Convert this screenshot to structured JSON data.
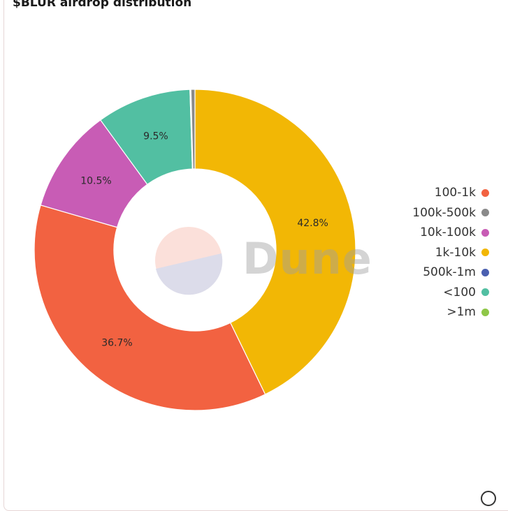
{
  "title": "$BLUR airdrop distribution",
  "watermark": "Dune",
  "chart_data": {
    "type": "pie",
    "donut": true,
    "title": "$BLUR airdrop distribution",
    "start_angle_deg": 0,
    "slices": [
      {
        "label": "1k-10k",
        "value": 42.8,
        "pct_label": "42.8%",
        "color": "#f2b705"
      },
      {
        "label": "100-1k",
        "value": 36.7,
        "pct_label": "36.7%",
        "color": "#f26241"
      },
      {
        "label": "10k-100k",
        "value": 10.5,
        "pct_label": "10.5%",
        "color": "#c85cb5"
      },
      {
        "label": "<100",
        "value": 9.5,
        "pct_label": "9.5%",
        "color": "#52bfa2"
      },
      {
        "label": ">1m",
        "value": 0.05,
        "pct_label": "",
        "color": "#8fc748"
      },
      {
        "label": "500k-1m",
        "value": 0.05,
        "pct_label": "",
        "color": "#4a5fb0"
      },
      {
        "label": "100k-500k",
        "value": 0.4,
        "pct_label": "",
        "color": "#8a8a8a"
      }
    ],
    "legend_position": "right",
    "legend": [
      {
        "label": "100-1k",
        "color": "#f26241"
      },
      {
        "label": "100k-500k",
        "color": "#8a8a8a"
      },
      {
        "label": "10k-100k",
        "color": "#c85cb5"
      },
      {
        "label": "1k-10k",
        "color": "#f2b705"
      },
      {
        "label": "500k-1m",
        "color": "#4a5fb0"
      },
      {
        "label": "<100",
        "color": "#52bfa2"
      },
      {
        "label": ">1m",
        "color": "#8fc748"
      }
    ]
  }
}
